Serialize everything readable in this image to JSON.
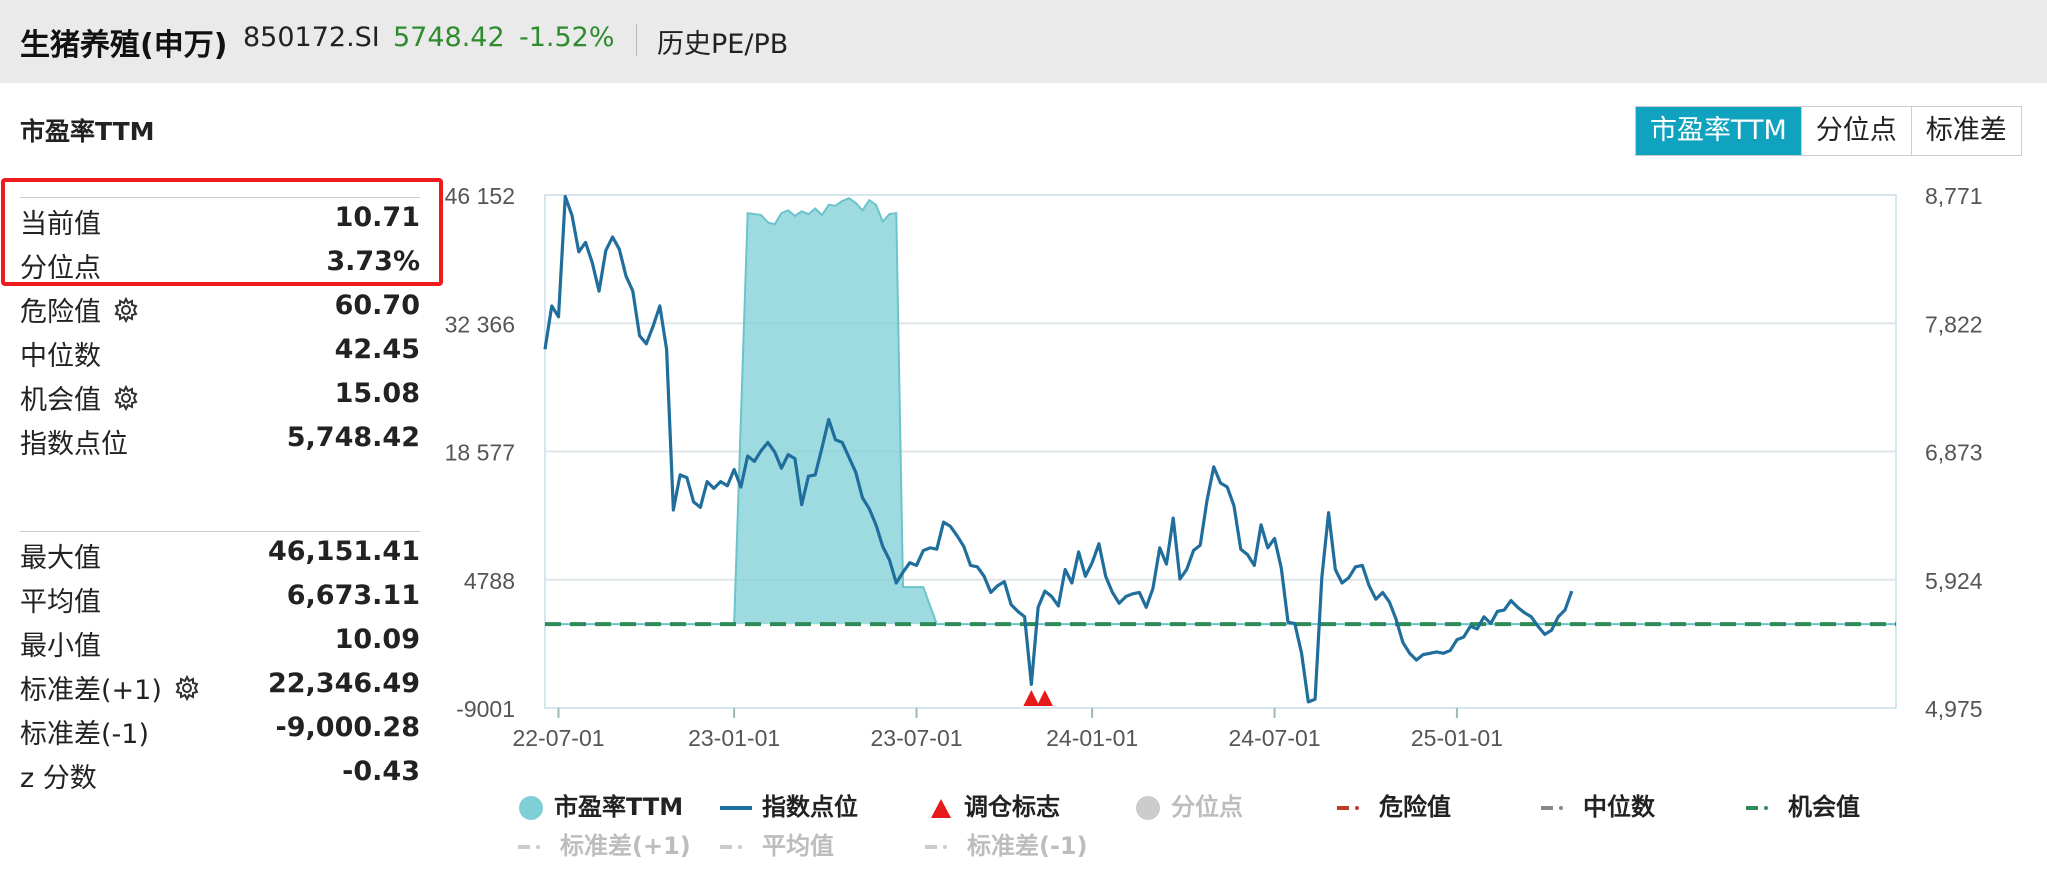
{
  "header": {
    "name": "生猪养殖(申万)",
    "code": "850172.SI",
    "price": "5748.42",
    "change": "-1.52%",
    "subtitle": "历史PE/PB"
  },
  "section_title": "市盈率TTM",
  "tabs": [
    {
      "label": "市盈率TTM",
      "active": true
    },
    {
      "label": "分位点",
      "active": false
    },
    {
      "label": "标准差",
      "active": false
    }
  ],
  "stats_top": [
    {
      "label": "当前值",
      "value": "10.71",
      "gear": false
    },
    {
      "label": "分位点",
      "value": "3.73%",
      "gear": false
    },
    {
      "label": "危险值",
      "value": "60.70",
      "gear": true
    },
    {
      "label": "中位数",
      "value": "42.45",
      "gear": false
    },
    {
      "label": "机会值",
      "value": "15.08",
      "gear": true
    },
    {
      "label": "指数点位",
      "value": "5,748.42",
      "gear": false
    }
  ],
  "stats_bottom": [
    {
      "label": "最大值",
      "value": "46,151.41",
      "gear": false
    },
    {
      "label": "平均值",
      "value": "6,673.11",
      "gear": false
    },
    {
      "label": "最小值",
      "value": "10.09",
      "gear": false
    },
    {
      "label": "标准差(+1)",
      "value": "22,346.49",
      "gear": true
    },
    {
      "label": "标准差(-1)",
      "value": "-9,000.28",
      "gear": false
    },
    {
      "label": "z 分数",
      "value": "-0.43",
      "gear": false
    }
  ],
  "colors": {
    "pe_area": "#7ecfd6",
    "index_line": "#1f6e9c",
    "opportunity": "#2e8b57",
    "danger": "#c0392b",
    "median": "#888888",
    "marker": "#e8191b",
    "header_green": "#2e8b2e"
  },
  "chart_data": {
    "type": "line",
    "x_ticks": [
      "22-07-01",
      "23-01-01",
      "23-07-01",
      "24-01-01",
      "24-07-01",
      "25-01-01"
    ],
    "y_left": {
      "ticks": [
        "46 152",
        "32 366",
        "18 577",
        "4788",
        "-9001"
      ],
      "min": -9001,
      "max": 46152
    },
    "y_right": {
      "ticks": [
        "8,771",
        "7,822",
        "6,873",
        "5,924",
        "4,975"
      ],
      "min": 4975,
      "max": 8771
    },
    "opportunity_line": 15.08,
    "series": [
      {
        "name": "市盈率TTM",
        "type": "area",
        "axis": "left",
        "points": [
          [
            0.0,
            10
          ],
          [
            0.14,
            10
          ],
          [
            0.15,
            44200
          ],
          [
            0.16,
            44000
          ],
          [
            0.165,
            43200
          ],
          [
            0.17,
            43000
          ],
          [
            0.175,
            44200
          ],
          [
            0.18,
            44500
          ],
          [
            0.185,
            43900
          ],
          [
            0.19,
            44400
          ],
          [
            0.195,
            44100
          ],
          [
            0.2,
            44700
          ],
          [
            0.205,
            44000
          ],
          [
            0.21,
            45100
          ],
          [
            0.215,
            45000
          ],
          [
            0.22,
            45500
          ],
          [
            0.225,
            45800
          ],
          [
            0.23,
            45300
          ],
          [
            0.235,
            44500
          ],
          [
            0.24,
            45600
          ],
          [
            0.245,
            45100
          ],
          [
            0.25,
            43300
          ],
          [
            0.255,
            44100
          ],
          [
            0.26,
            44200
          ],
          [
            0.265,
            4000
          ],
          [
            0.28,
            4000
          ],
          [
            0.29,
            15
          ],
          [
            1.0,
            11
          ]
        ]
      },
      {
        "name": "指数点位",
        "type": "line",
        "axis": "right",
        "points": [
          [
            0.0,
            7630
          ],
          [
            0.005,
            7950
          ],
          [
            0.01,
            7870
          ],
          [
            0.015,
            8760
          ],
          [
            0.02,
            8620
          ],
          [
            0.025,
            8350
          ],
          [
            0.03,
            8420
          ],
          [
            0.035,
            8270
          ],
          [
            0.04,
            8060
          ],
          [
            0.045,
            8360
          ],
          [
            0.05,
            8460
          ],
          [
            0.055,
            8370
          ],
          [
            0.06,
            8170
          ],
          [
            0.065,
            8060
          ],
          [
            0.07,
            7730
          ],
          [
            0.075,
            7670
          ],
          [
            0.08,
            7800
          ],
          [
            0.085,
            7950
          ],
          [
            0.09,
            7630
          ],
          [
            0.095,
            6440
          ],
          [
            0.1,
            6700
          ],
          [
            0.105,
            6680
          ],
          [
            0.11,
            6500
          ],
          [
            0.115,
            6460
          ],
          [
            0.12,
            6650
          ],
          [
            0.125,
            6600
          ],
          [
            0.13,
            6650
          ],
          [
            0.135,
            6620
          ],
          [
            0.14,
            6740
          ],
          [
            0.145,
            6610
          ],
          [
            0.15,
            6840
          ],
          [
            0.155,
            6800
          ],
          [
            0.16,
            6880
          ],
          [
            0.165,
            6940
          ],
          [
            0.17,
            6870
          ],
          [
            0.175,
            6750
          ],
          [
            0.18,
            6850
          ],
          [
            0.185,
            6820
          ],
          [
            0.19,
            6480
          ],
          [
            0.195,
            6690
          ],
          [
            0.2,
            6700
          ],
          [
            0.205,
            6900
          ],
          [
            0.21,
            7110
          ],
          [
            0.215,
            6960
          ],
          [
            0.22,
            6940
          ],
          [
            0.23,
            6720
          ],
          [
            0.235,
            6530
          ],
          [
            0.24,
            6450
          ],
          [
            0.245,
            6330
          ],
          [
            0.25,
            6170
          ],
          [
            0.255,
            6070
          ],
          [
            0.26,
            5900
          ],
          [
            0.265,
            5980
          ],
          [
            0.27,
            6050
          ],
          [
            0.275,
            6030
          ],
          [
            0.28,
            6140
          ],
          [
            0.285,
            6160
          ],
          [
            0.29,
            6150
          ],
          [
            0.295,
            6350
          ],
          [
            0.3,
            6320
          ],
          [
            0.305,
            6250
          ],
          [
            0.31,
            6170
          ],
          [
            0.315,
            6030
          ],
          [
            0.32,
            6020
          ],
          [
            0.325,
            5950
          ],
          [
            0.33,
            5830
          ],
          [
            0.335,
            5880
          ],
          [
            0.34,
            5910
          ],
          [
            0.345,
            5740
          ],
          [
            0.35,
            5690
          ],
          [
            0.355,
            5650
          ],
          [
            0.36,
            5150
          ],
          [
            0.365,
            5720
          ],
          [
            0.37,
            5840
          ],
          [
            0.375,
            5800
          ],
          [
            0.38,
            5730
          ],
          [
            0.385,
            6000
          ],
          [
            0.39,
            5900
          ],
          [
            0.395,
            6130
          ],
          [
            0.4,
            5950
          ],
          [
            0.405,
            6050
          ],
          [
            0.41,
            6190
          ],
          [
            0.415,
            5950
          ],
          [
            0.42,
            5830
          ],
          [
            0.425,
            5750
          ],
          [
            0.43,
            5800
          ],
          [
            0.435,
            5820
          ],
          [
            0.44,
            5830
          ],
          [
            0.445,
            5720
          ],
          [
            0.45,
            5860
          ],
          [
            0.455,
            6160
          ],
          [
            0.46,
            6040
          ],
          [
            0.465,
            6380
          ],
          [
            0.47,
            5930
          ],
          [
            0.475,
            6000
          ],
          [
            0.48,
            6140
          ],
          [
            0.485,
            6180
          ],
          [
            0.49,
            6510
          ],
          [
            0.495,
            6760
          ],
          [
            0.5,
            6640
          ],
          [
            0.505,
            6610
          ],
          [
            0.51,
            6470
          ],
          [
            0.515,
            6150
          ],
          [
            0.52,
            6110
          ],
          [
            0.525,
            6030
          ],
          [
            0.53,
            6330
          ],
          [
            0.535,
            6160
          ],
          [
            0.54,
            6230
          ],
          [
            0.545,
            6010
          ],
          [
            0.55,
            5610
          ],
          [
            0.555,
            5600
          ],
          [
            0.56,
            5380
          ],
          [
            0.565,
            5020
          ],
          [
            0.57,
            5040
          ],
          [
            0.575,
            5940
          ],
          [
            0.58,
            6420
          ],
          [
            0.585,
            6000
          ],
          [
            0.59,
            5900
          ],
          [
            0.595,
            5940
          ],
          [
            0.6,
            6020
          ],
          [
            0.605,
            6030
          ],
          [
            0.61,
            5880
          ],
          [
            0.615,
            5780
          ],
          [
            0.62,
            5830
          ],
          [
            0.625,
            5760
          ],
          [
            0.63,
            5630
          ],
          [
            0.635,
            5460
          ],
          [
            0.64,
            5380
          ],
          [
            0.645,
            5330
          ],
          [
            0.65,
            5370
          ],
          [
            0.655,
            5380
          ],
          [
            0.66,
            5390
          ],
          [
            0.665,
            5380
          ],
          [
            0.67,
            5400
          ],
          [
            0.675,
            5480
          ],
          [
            0.68,
            5500
          ],
          [
            0.685,
            5580
          ],
          [
            0.69,
            5560
          ],
          [
            0.695,
            5650
          ],
          [
            0.7,
            5600
          ],
          [
            0.705,
            5690
          ],
          [
            0.71,
            5700
          ],
          [
            0.715,
            5770
          ],
          [
            0.72,
            5720
          ],
          [
            0.725,
            5680
          ],
          [
            0.73,
            5650
          ],
          [
            0.735,
            5580
          ],
          [
            0.74,
            5520
          ],
          [
            0.745,
            5550
          ],
          [
            0.75,
            5650
          ],
          [
            0.755,
            5700
          ],
          [
            0.76,
            5840
          ]
        ]
      }
    ],
    "markers": [
      {
        "x": 0.36,
        "label": "调仓标志"
      },
      {
        "x": 0.37,
        "label": "调仓标志"
      }
    ],
    "legend": {
      "row1": [
        {
          "label": "市盈率TTM",
          "icon": "circle",
          "color": "#7ecfd6",
          "active": true
        },
        {
          "label": "指数点位",
          "icon": "line",
          "color": "#1f6e9c",
          "active": true
        },
        {
          "label": "调仓标志",
          "icon": "triangle",
          "color": "#e8191b",
          "active": true
        },
        {
          "label": "分位点",
          "icon": "circle",
          "color": "#cccccc",
          "active": false
        },
        {
          "label": "危险值",
          "icon": "dash",
          "color": "#c0392b",
          "active": true
        },
        {
          "label": "中位数",
          "icon": "dash",
          "color": "#888888",
          "active": true
        },
        {
          "label": "机会值",
          "icon": "dash",
          "color": "#2e8b57",
          "active": true
        }
      ],
      "row2": [
        {
          "label": "标准差(+1)",
          "icon": "dash",
          "color": "#cccccc",
          "active": false
        },
        {
          "label": "平均值",
          "icon": "dash",
          "color": "#cccccc",
          "active": false
        },
        {
          "label": "标准差(-1)",
          "icon": "dash",
          "color": "#cccccc",
          "active": false
        }
      ]
    }
  }
}
